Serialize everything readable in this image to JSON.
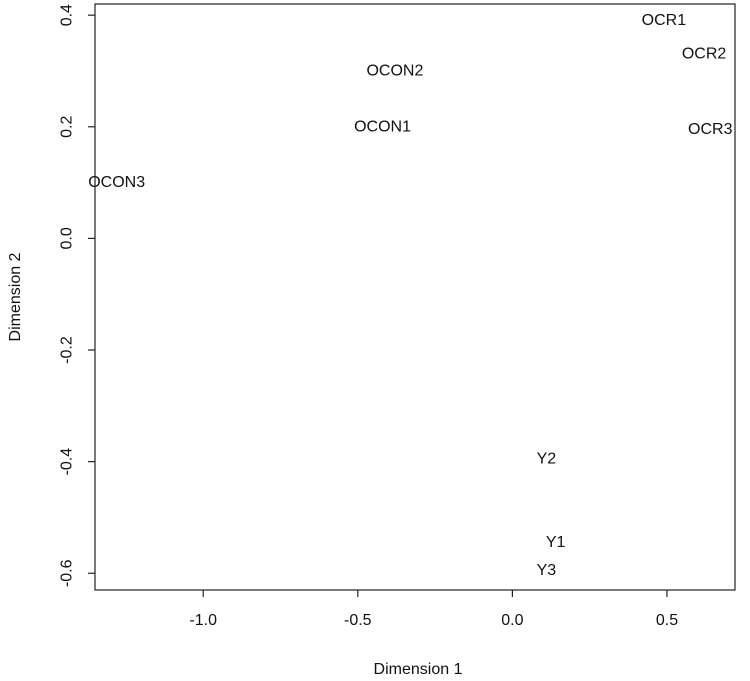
{
  "chart_data": {
    "type": "scatter",
    "title": "",
    "xlabel": "Dimension 1",
    "ylabel": "Dimension 2",
    "xlim": [
      -1.35,
      0.72
    ],
    "ylim": [
      -0.63,
      0.42
    ],
    "xticks": [
      -1.0,
      -0.5,
      0.0,
      0.5
    ],
    "yticks": [
      0.4,
      0.2,
      0.0,
      -0.2,
      -0.4,
      -0.6
    ],
    "xtick_labels": [
      "-1.0",
      "-0.5",
      "0.0",
      "0.5"
    ],
    "ytick_labels": [
      "0.4",
      "0.2",
      "0.0",
      "-0.2",
      "-0.4",
      "-0.6"
    ],
    "grid": false,
    "points": [
      {
        "label": "OCR1",
        "x": 0.49,
        "y": 0.39
      },
      {
        "label": "OCR2",
        "x": 0.62,
        "y": 0.33
      },
      {
        "label": "OCR3",
        "x": 0.64,
        "y": 0.195
      },
      {
        "label": "OCON2",
        "x": -0.38,
        "y": 0.3
      },
      {
        "label": "OCON1",
        "x": -0.42,
        "y": 0.2
      },
      {
        "label": "OCON3",
        "x": -1.28,
        "y": 0.1
      },
      {
        "label": "Y2",
        "x": 0.11,
        "y": -0.395
      },
      {
        "label": "Y1",
        "x": 0.14,
        "y": -0.545
      },
      {
        "label": "Y3",
        "x": 0.11,
        "y": -0.595
      }
    ]
  }
}
